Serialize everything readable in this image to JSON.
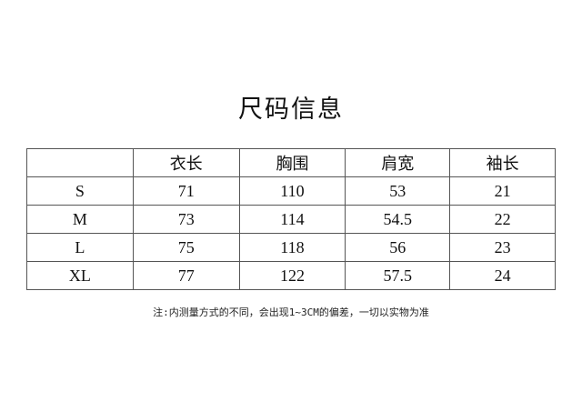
{
  "title": "尺码信息",
  "table": {
    "headers": [
      "",
      "衣长",
      "胸围",
      "肩宽",
      "袖长"
    ],
    "rows": [
      [
        "S",
        "71",
        "110",
        "53",
        "21"
      ],
      [
        "M",
        "73",
        "114",
        "54.5",
        "22"
      ],
      [
        "L",
        "75",
        "118",
        "56",
        "23"
      ],
      [
        "XL",
        "77",
        "122",
        "57.5",
        "24"
      ]
    ]
  },
  "note": "注:内测量方式的不同，会出现1~3CM的偏差，一切以实物为准"
}
